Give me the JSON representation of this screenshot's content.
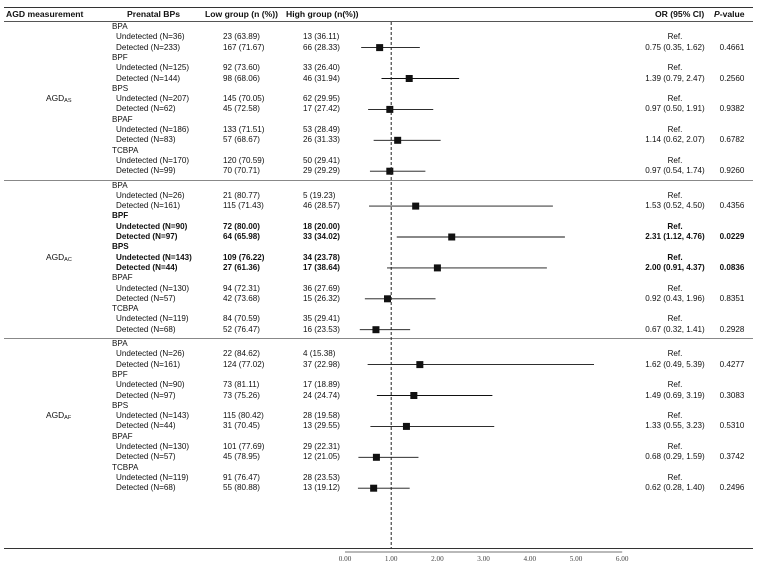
{
  "header": {
    "agd": "AGD measurement",
    "bps": "Prenatal BPs",
    "low": "Low group (n (%))",
    "high": "High group (n(%))",
    "or": "OR (95% CI)",
    "p_italic": "P",
    "p_rest": "-value"
  },
  "sections": [
    {
      "name": "AGD",
      "sub": "AS",
      "groups": [
        {
          "bp": "BPA",
          "bold": false,
          "undetected": {
            "label": "Undetected (N=36)",
            "low": "23 (63.89)",
            "high": "13 (36.11)",
            "or": "Ref.",
            "p": ""
          },
          "detected": {
            "label": "Detected (N=233)",
            "low": "167 (71.67)",
            "high": "66 (28.33)",
            "or": "0.75 (0.35, 1.62)",
            "p": "0.4661",
            "est": 0.75,
            "lo": 0.35,
            "hi": 1.62
          }
        },
        {
          "bp": "BPF",
          "bold": false,
          "undetected": {
            "label": "Undetected (N=125)",
            "low": "92 (73.60)",
            "high": "33 (26.40)",
            "or": "Ref.",
            "p": ""
          },
          "detected": {
            "label": "Detected (N=144)",
            "low": "98 (68.06)",
            "high": "46 (31.94)",
            "or": "1.39 (0.79, 2.47)",
            "p": "0.2560",
            "est": 1.39,
            "lo": 0.79,
            "hi": 2.47
          }
        },
        {
          "bp": "BPS",
          "bold": false,
          "undetected": {
            "label": "Undetected (N=207)",
            "low": "145 (70.05)",
            "high": "62 (29.95)",
            "or": "Ref.",
            "p": ""
          },
          "detected": {
            "label": "Detected (N=62)",
            "low": "45 (72.58)",
            "high": "17 (27.42)",
            "or": "0.97 (0.50, 1.91)",
            "p": "0.9382",
            "est": 0.97,
            "lo": 0.5,
            "hi": 1.91
          }
        },
        {
          "bp": "BPAF",
          "bold": false,
          "undetected": {
            "label": "Undetected (N=186)",
            "low": "133 (71.51)",
            "high": "53 (28.49)",
            "or": "Ref.",
            "p": ""
          },
          "detected": {
            "label": "Detected (N=83)",
            "low": "57 (68.67)",
            "high": "26 (31.33)",
            "or": "1.14 (0.62, 2.07)",
            "p": "0.6782",
            "est": 1.14,
            "lo": 0.62,
            "hi": 2.07
          }
        },
        {
          "bp": "TCBPA",
          "bold": false,
          "undetected": {
            "label": "Undetected (N=170)",
            "low": "120 (70.59)",
            "high": "50 (29.41)",
            "or": "Ref.",
            "p": ""
          },
          "detected": {
            "label": "Detected (N=99)",
            "low": "70 (70.71)",
            "high": "29 (29.29)",
            "or": "0.97 (0.54, 1.74)",
            "p": "0.9260",
            "est": 0.97,
            "lo": 0.54,
            "hi": 1.74
          }
        }
      ]
    },
    {
      "name": "AGD",
      "sub": "AC",
      "groups": [
        {
          "bp": "BPA",
          "bold": false,
          "undetected": {
            "label": "Undetected (N=26)",
            "low": "21 (80.77)",
            "high": "5 (19.23)",
            "or": "Ref.",
            "p": ""
          },
          "detected": {
            "label": "Detected (N=161)",
            "low": "115 (71.43)",
            "high": "46 (28.57)",
            "or": "1.53 (0.52, 4.50)",
            "p": "0.4356",
            "est": 1.53,
            "lo": 0.52,
            "hi": 4.5
          }
        },
        {
          "bp": "BPF",
          "bold": true,
          "undetected": {
            "label": "Undetected (N=90)",
            "low": "72 (80.00)",
            "high": "18 (20.00)",
            "or": "Ref.",
            "p": ""
          },
          "detected": {
            "label": "Detected (N=97)",
            "low": "64 (65.98)",
            "high": "33 (34.02)",
            "or": "2.31 (1.12, 4.76)",
            "p": "0.0229",
            "est": 2.31,
            "lo": 1.12,
            "hi": 4.76
          }
        },
        {
          "bp": "BPS",
          "bold": true,
          "undetected": {
            "label": "Undetected (N=143)",
            "low": "109 (76.22)",
            "high": "34 (23.78)",
            "or": "Ref.",
            "p": ""
          },
          "detected": {
            "label": "Detected (N=44)",
            "low": "27 (61.36)",
            "high": "17 (38.64)",
            "or": "2.00 (0.91, 4.37)",
            "p": "0.0836",
            "est": 2.0,
            "lo": 0.91,
            "hi": 4.37
          }
        },
        {
          "bp": "BPAF",
          "bold": false,
          "undetected": {
            "label": "Undetected (N=130)",
            "low": "94 (72.31)",
            "high": "36 (27.69)",
            "or": "Ref.",
            "p": ""
          },
          "detected": {
            "label": "Detected (N=57)",
            "low": "42 (73.68)",
            "high": "15 (26.32)",
            "or": "0.92 (0.43, 1.96)",
            "p": "0.8351",
            "est": 0.92,
            "lo": 0.43,
            "hi": 1.96
          }
        },
        {
          "bp": "TCBPA",
          "bold": false,
          "undetected": {
            "label": "Undetected (N=119)",
            "low": "84 (70.59)",
            "high": "35 (29.41)",
            "or": "Ref.",
            "p": ""
          },
          "detected": {
            "label": "Detected (N=68)",
            "low": "52 (76.47)",
            "high": "16 (23.53)",
            "or": "0.67 (0.32, 1.41)",
            "p": "0.2928",
            "est": 0.67,
            "lo": 0.32,
            "hi": 1.41
          }
        }
      ]
    },
    {
      "name": "AGD",
      "sub": "AF",
      "groups": [
        {
          "bp": "BPA",
          "bold": false,
          "undetected": {
            "label": "Undetected (N=26)",
            "low": "22 (84.62)",
            "high": "4 (15.38)",
            "or": "Ref.",
            "p": ""
          },
          "detected": {
            "label": "Detected (N=161)",
            "low": "124 (77.02)",
            "high": "37 (22.98)",
            "or": "1.62 (0.49, 5.39)",
            "p": "0.4277",
            "est": 1.62,
            "lo": 0.49,
            "hi": 5.39
          }
        },
        {
          "bp": "BPF",
          "bold": false,
          "undetected": {
            "label": "Undetected (N=90)",
            "low": "73 (81.11)",
            "high": "17 (18.89)",
            "or": "Ref.",
            "p": ""
          },
          "detected": {
            "label": "Detected (N=97)",
            "low": "73 (75.26)",
            "high": "24 (24.74)",
            "or": "1.49 (0.69, 3.19)",
            "p": "0.3083",
            "est": 1.49,
            "lo": 0.69,
            "hi": 3.19
          }
        },
        {
          "bp": "BPS",
          "bold": false,
          "undetected": {
            "label": "Undetected (N=143)",
            "low": "115 (80.42)",
            "high": "28 (19.58)",
            "or": "Ref.",
            "p": ""
          },
          "detected": {
            "label": "Detected (N=44)",
            "low": "31 (70.45)",
            "high": "13 (29.55)",
            "or": "1.33 (0.55, 3.23)",
            "p": "0.5310",
            "est": 1.33,
            "lo": 0.55,
            "hi": 3.23
          }
        },
        {
          "bp": "BPAF",
          "bold": false,
          "undetected": {
            "label": "Undetected (N=130)",
            "low": "101 (77.69)",
            "high": "29 (22.31)",
            "or": "Ref.",
            "p": ""
          },
          "detected": {
            "label": "Detected (N=57)",
            "low": "45 (78.95)",
            "high": "12 (21.05)",
            "or": "0.68 (0.29, 1.59)",
            "p": "0.3742",
            "est": 0.68,
            "lo": 0.29,
            "hi": 1.59
          }
        },
        {
          "bp": "TCBPA",
          "bold": false,
          "undetected": {
            "label": "Undetected (N=119)",
            "low": "91 (76.47)",
            "high": "28 (23.53)",
            "or": "Ref.",
            "p": ""
          },
          "detected": {
            "label": "Detected (N=68)",
            "low": "55 (80.88)",
            "high": "13 (19.12)",
            "or": "0.62 (0.28, 1.40)",
            "p": "0.2496",
            "est": 0.62,
            "lo": 0.28,
            "hi": 1.4
          }
        }
      ]
    }
  ],
  "chart_data": {
    "type": "forest",
    "xlim": [
      0,
      6
    ],
    "reference_line": 1,
    "ticks": [
      "0.00",
      "1.00",
      "2.00",
      "3.00",
      "4.00",
      "5.00",
      "6.00"
    ],
    "tick_values": [
      0,
      1,
      2,
      3,
      4,
      5,
      6
    ]
  }
}
